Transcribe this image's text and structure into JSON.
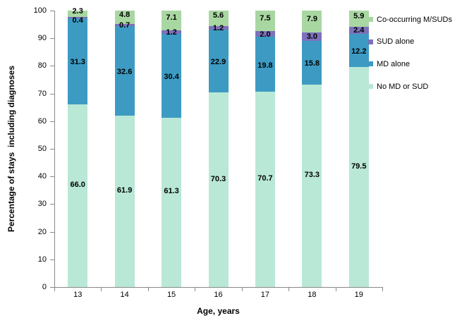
{
  "chart_data": {
    "type": "bar",
    "stacked": true,
    "title": "",
    "xlabel": "Age, years",
    "ylabel": "Percentage of stays  including diagnoses",
    "ylim": [
      0,
      100
    ],
    "ytick_step": 10,
    "y_tick_labels": [
      "0",
      "10",
      "20",
      "30",
      "40",
      "50",
      "60",
      "70",
      "80",
      "90",
      "100"
    ],
    "categories": [
      "13",
      "14",
      "15",
      "16",
      "17",
      "18",
      "19"
    ],
    "series": [
      {
        "name": "No MD or SUD",
        "color": "#B9E8D6",
        "values": [
          66.0,
          61.9,
          61.3,
          70.3,
          70.7,
          73.3,
          79.5
        ]
      },
      {
        "name": "MD alone",
        "color": "#3D9BC3",
        "values": [
          31.3,
          32.6,
          30.4,
          22.9,
          19.8,
          15.8,
          12.2
        ]
      },
      {
        "name": "SUD alone",
        "color": "#7D71BC",
        "values": [
          0.4,
          0.7,
          1.2,
          1.2,
          2.0,
          3.0,
          2.4
        ]
      },
      {
        "name": "Co-occurring M/SUDs",
        "color": "#A9D7A2",
        "values": [
          2.3,
          4.8,
          7.1,
          5.6,
          7.5,
          7.9,
          5.9
        ]
      }
    ],
    "legend": [
      "Co-occurring M/SUDs",
      "SUD alone",
      "MD alone",
      "No MD or SUD"
    ],
    "legend_position": "right-top",
    "grid": false,
    "label_decimals": 1
  },
  "colors": {
    "axis": "#898989",
    "label_text": "#000000",
    "background": "#ffffff"
  }
}
